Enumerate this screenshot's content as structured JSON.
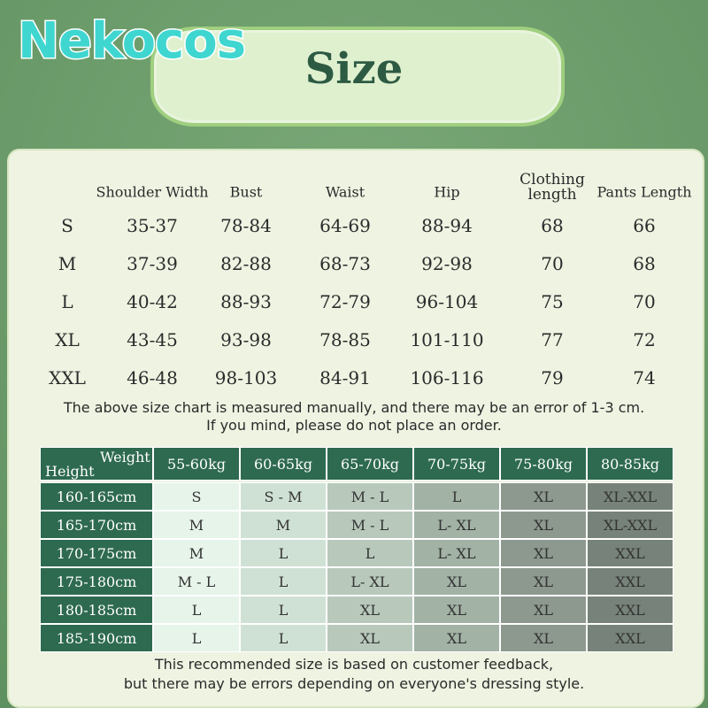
{
  "header": {
    "logo": "Nekocos",
    "title": "Size"
  },
  "size_table": {
    "columns": [
      "Shoulder Width",
      "Bust",
      "Waist",
      "Hip",
      "Clothing length",
      "Pants Length"
    ],
    "rows": [
      [
        "S",
        "35-37",
        "78-84",
        "64-69",
        "88-94",
        "68",
        "66"
      ],
      [
        "M",
        "37-39",
        "82-88",
        "68-73",
        "92-98",
        "70",
        "68"
      ],
      [
        "L",
        "40-42",
        "88-93",
        "72-79",
        "96-104",
        "75",
        "70"
      ],
      [
        "XL",
        "43-45",
        "93-98",
        "78-85",
        "101-110",
        "77",
        "72"
      ],
      [
        "XXL",
        "46-48",
        "98-103",
        "84-91",
        "106-116",
        "79",
        "74"
      ]
    ]
  },
  "size_note": [
    "The above size chart is measured manually, and there may be an error of 1-3 cm.",
    "If you mind, please do not place an order."
  ],
  "recommend_table": {
    "corner_weight": "Weight",
    "corner_height": "Height",
    "columns": [
      "55-60kg",
      "60-65kg",
      "65-70kg",
      "70-75kg",
      "75-80kg",
      "80-85kg"
    ],
    "rows": [
      [
        "160-165cm",
        "S",
        "S - M",
        "M - L",
        "L",
        "XL",
        "XL-XXL"
      ],
      [
        "165-170cm",
        "M",
        "M",
        "M - L",
        "L- XL",
        "XL",
        "XL-XXL"
      ],
      [
        "170-175cm",
        "M",
        "L",
        "L",
        "L- XL",
        "XL",
        "XXL"
      ],
      [
        "175-180cm",
        "M - L",
        "L",
        "L- XL",
        "XL",
        "XL",
        "XXL"
      ],
      [
        "180-185cm",
        "L",
        "L",
        "XL",
        "XL",
        "XL",
        "XXL"
      ],
      [
        "185-190cm",
        "L",
        "L",
        "XL",
        "XL",
        "XL",
        "XXL"
      ]
    ]
  },
  "recommend_note": [
    "This recommended size is based on customer feedback,",
    "but there may be errors depending on everyone's dressing style."
  ]
}
